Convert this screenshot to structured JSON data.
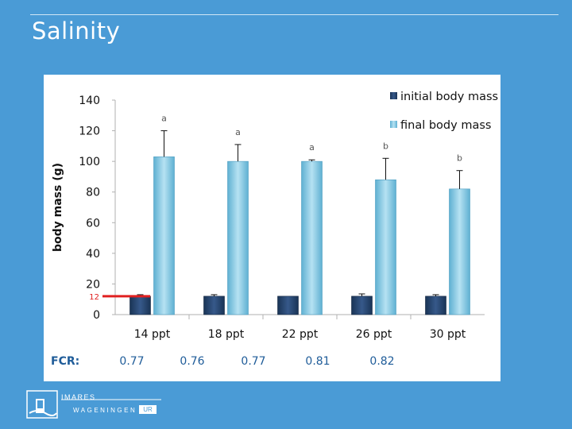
{
  "slide": {
    "title": "Salinity"
  },
  "chart_data": {
    "type": "bar",
    "title": "",
    "xlabel": "",
    "ylabel": "body mass (g)",
    "ylim": [
      0,
      140
    ],
    "yticks": [
      0,
      20,
      40,
      60,
      80,
      100,
      120,
      140
    ],
    "categories": [
      "14 ppt",
      "18 ppt",
      "22 ppt",
      "26 ppt",
      "30 ppt"
    ],
    "series": [
      {
        "name": "initial body mass",
        "color": "#1f3a5f",
        "values": [
          12,
          12,
          12,
          12,
          12
        ],
        "error": [
          1,
          1,
          0,
          1.5,
          1
        ]
      },
      {
        "name": "final body mass",
        "color": "#7ec8e3",
        "values": [
          103,
          100,
          100,
          88,
          82
        ],
        "error": [
          17,
          11,
          1,
          14,
          12
        ]
      }
    ],
    "significance_letters": [
      "a",
      "a",
      "a",
      "b",
      "b"
    ],
    "reference_line": {
      "value": 12,
      "label": "12",
      "color": "#e02020"
    },
    "fcr_label": "FCR:",
    "fcr_values": [
      "0.77",
      "0.76",
      "0.77",
      "0.81",
      "0.82"
    ],
    "legend_position": "top-right",
    "grid": false
  },
  "logo": {
    "top_text": "IMARES",
    "bottom_text": "WAGENINGEN",
    "badge_text": "UR",
    "icon": "imares-logo-icon"
  }
}
